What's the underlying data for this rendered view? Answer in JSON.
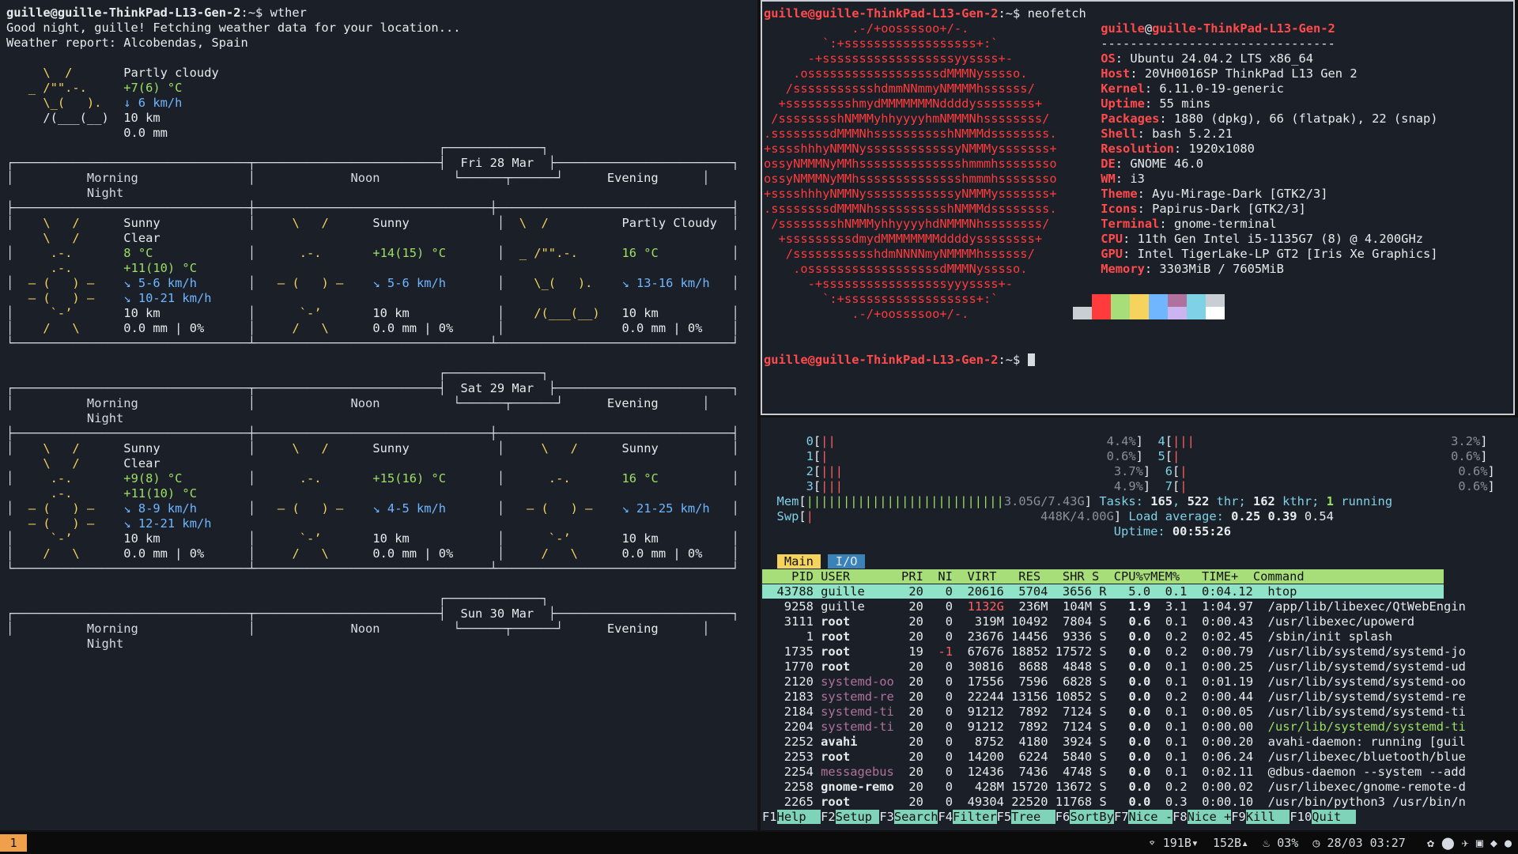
{
  "weather": {
    "prompt_user": "guille@guille-ThinkPad-L13-Gen-2",
    "prompt_tail": ":~$",
    "command": "wther",
    "greeting": "Good night, guille! Fetching weather data for your location...",
    "report": "Weather report: Alcobendas, Spain",
    "current": {
      "condition": "Partly cloudy",
      "temp": "+7(6) °C",
      "wind": "6 km/h",
      "visibility": "10 km",
      "precip": "0.0 mm"
    },
    "days": [
      {
        "date": "Fri 28 Mar",
        "morning": {
          "condition": "Sunny",
          "temp": "8 °C",
          "wind": "5-6 km/h",
          "visibility": "10 km",
          "precip": "0.0 mm | 0%"
        },
        "noon": {
          "condition": "Sunny",
          "temp": "+14(15) °C",
          "wind": "5-6 km/h",
          "visibility": "10 km",
          "precip": "0.0 mm | 0%"
        },
        "evening": {
          "condition": "Partly Cloudy",
          "temp": "16 °C",
          "wind": "13-16 km/h",
          "visibility": "10 km",
          "precip": "0.0 mm | 0%"
        },
        "night": {
          "condition": "Clear",
          "temp": "+11(10) °C",
          "wind": "10-21 km/h",
          "visibility": "10 km",
          "precip": "0.0 mm | 0%"
        }
      },
      {
        "date": "Sat 29 Mar",
        "morning": {
          "condition": "Sunny",
          "temp": "+9(8) °C",
          "wind": "8-9 km/h",
          "visibility": "10 km",
          "precip": "0.0 mm | 0%"
        },
        "noon": {
          "condition": "Sunny",
          "temp": "+15(16) °C",
          "wind": "4-5 km/h",
          "visibility": "10 km",
          "precip": "0.0 mm | 0%"
        },
        "evening": {
          "condition": "Sunny",
          "temp": "16 °C",
          "wind": "21-25 km/h",
          "visibility": "10 km",
          "precip": "0.0 mm | 0%"
        },
        "night": {
          "condition": "Clear",
          "temp": "+11(10) °C",
          "wind": "12-21 km/h",
          "visibility": "10 km",
          "precip": "0.0 mm | 0%"
        }
      },
      {
        "date": "Sun 30 Mar"
      }
    ],
    "labels": {
      "morning": "Morning",
      "noon": "Noon",
      "evening": "Evening",
      "night": "Night"
    }
  },
  "neofetch": {
    "prompt_user": "guille@guille-ThinkPad-L13-Gen-2",
    "prompt_tail": ":~$",
    "command": "neofetch",
    "user": "guille",
    "host": "guille-ThinkPad-L13-Gen-2",
    "separator": "--------------------------------",
    "info": [
      {
        "key": "OS",
        "value": "Ubuntu 24.04.2 LTS x86_64"
      },
      {
        "key": "Host",
        "value": "20VH0016SP ThinkPad L13 Gen 2"
      },
      {
        "key": "Kernel",
        "value": "6.11.0-19-generic"
      },
      {
        "key": "Uptime",
        "value": "55 mins"
      },
      {
        "key": "Packages",
        "value": "1880 (dpkg), 66 (flatpak), 22 (snap)"
      },
      {
        "key": "Shell",
        "value": "bash 5.2.21"
      },
      {
        "key": "Resolution",
        "value": "1920x1080"
      },
      {
        "key": "DE",
        "value": "GNOME 46.0"
      },
      {
        "key": "WM",
        "value": "i3"
      },
      {
        "key": "Theme",
        "value": "Ayu-Mirage-Dark [GTK2/3]"
      },
      {
        "key": "Icons",
        "value": "Papirus-Dark [GTK2/3]"
      },
      {
        "key": "Terminal",
        "value": "gnome-terminal"
      },
      {
        "key": "CPU",
        "value": "11th Gen Intel i5-1135G7 (8) @ 4.200GHz"
      },
      {
        "key": "GPU",
        "value": "Intel TigerLake-LP GT2 [Iris Xe Graphics]"
      },
      {
        "key": "Memory",
        "value": "3303MiB / 7605MiB"
      }
    ],
    "palette_top": [
      "#1b1f28",
      "#ff3b3b",
      "#a8de7a",
      "#f5d35c",
      "#6fb6ff",
      "#b0729c",
      "#7fd1e6",
      "#c9cdd4"
    ],
    "palette_bottom": [
      "#c9cdd4",
      "#ff3b3b",
      "#a8de7a",
      "#f5d35c",
      "#6fb6ff",
      "#cbb4f0",
      "#7fd1e6",
      "#ffffff"
    ]
  },
  "htop": {
    "cpus": [
      {
        "id": "0",
        "pct": "4.4%"
      },
      {
        "id": "1",
        "pct": "0.6%"
      },
      {
        "id": "2",
        "pct": "3.7%"
      },
      {
        "id": "3",
        "pct": "4.9%"
      },
      {
        "id": "4",
        "pct": "3.2%"
      },
      {
        "id": "5",
        "pct": "0.6%"
      },
      {
        "id": "6",
        "pct": "0.6%"
      },
      {
        "id": "7",
        "pct": "0.6%"
      }
    ],
    "mem": "3.05G/7.43G",
    "swp": "448K/4.00G",
    "tasks": "165",
    "thr": "522",
    "kthr": "162",
    "running": "1",
    "load": [
      "0.25",
      "0.39",
      "0.54"
    ],
    "uptime": "00:55:26",
    "tabs": [
      "Main",
      "I/O"
    ],
    "columns": "    PID USER       PRI  NI  VIRT   RES   SHR S  CPU%▽MEM%   TIME+  Command",
    "rows": [
      {
        "pid": "43788",
        "user": "guille",
        "pri": "20",
        "ni": "0",
        "virt": "20616",
        "res": "5704",
        "shr": "3656",
        "s": "R",
        "cpu": "5.0",
        "mem": "0.1",
        "time": "0:04.12",
        "cmd": "htop"
      },
      {
        "pid": "9258",
        "user": "guille",
        "pri": "20",
        "ni": "0",
        "virt": "1132G",
        "res": "236M",
        "shr": "104M",
        "s": "S",
        "cpu": "1.9",
        "mem": "3.1",
        "time": "1:04.97",
        "cmd": "/app/lib/libexec/QtWebEngin"
      },
      {
        "pid": "3111",
        "user": "root",
        "pri": "20",
        "ni": "0",
        "virt": "319M",
        "res": "10492",
        "shr": "7804",
        "s": "S",
        "cpu": "0.6",
        "mem": "0.1",
        "time": "0:00.43",
        "cmd": "/usr/libexec/upowerd"
      },
      {
        "pid": "1",
        "user": "root",
        "pri": "20",
        "ni": "0",
        "virt": "23676",
        "res": "14456",
        "shr": "9336",
        "s": "S",
        "cpu": "0.0",
        "mem": "0.2",
        "time": "0:02.45",
        "cmd": "/sbin/init splash"
      },
      {
        "pid": "1735",
        "user": "root",
        "pri": "19",
        "ni": "-1",
        "virt": "67676",
        "res": "18852",
        "shr": "17572",
        "s": "S",
        "cpu": "0.0",
        "mem": "0.2",
        "time": "0:00.79",
        "cmd": "/usr/lib/systemd/systemd-jo"
      },
      {
        "pid": "1770",
        "user": "root",
        "pri": "20",
        "ni": "0",
        "virt": "30816",
        "res": "8688",
        "shr": "4848",
        "s": "S",
        "cpu": "0.0",
        "mem": "0.1",
        "time": "0:00.25",
        "cmd": "/usr/lib/systemd/systemd-ud"
      },
      {
        "pid": "2120",
        "user": "systemd-oo",
        "pri": "20",
        "ni": "0",
        "virt": "17556",
        "res": "7596",
        "shr": "6828",
        "s": "S",
        "cpu": "0.0",
        "mem": "0.1",
        "time": "0:01.19",
        "cmd": "/usr/lib/systemd/systemd-oo"
      },
      {
        "pid": "2183",
        "user": "systemd-re",
        "pri": "20",
        "ni": "0",
        "virt": "22244",
        "res": "13156",
        "shr": "10852",
        "s": "S",
        "cpu": "0.0",
        "mem": "0.2",
        "time": "0:00.44",
        "cmd": "/usr/lib/systemd/systemd-re"
      },
      {
        "pid": "2184",
        "user": "systemd-ti",
        "pri": "20",
        "ni": "0",
        "virt": "91212",
        "res": "7892",
        "shr": "7124",
        "s": "S",
        "cpu": "0.0",
        "mem": "0.1",
        "time": "0:00.05",
        "cmd": "/usr/lib/systemd/systemd-ti"
      },
      {
        "pid": "2204",
        "user": "systemd-ti",
        "pri": "20",
        "ni": "0",
        "virt": "91212",
        "res": "7892",
        "shr": "7124",
        "s": "S",
        "cpu": "0.0",
        "mem": "0.1",
        "time": "0:00.00",
        "cmd": "/usr/lib/systemd/systemd-ti"
      },
      {
        "pid": "2252",
        "user": "avahi",
        "pri": "20",
        "ni": "0",
        "virt": "8752",
        "res": "4180",
        "shr": "3924",
        "s": "S",
        "cpu": "0.0",
        "mem": "0.1",
        "time": "0:00.20",
        "cmd": "avahi-daemon: running [guil"
      },
      {
        "pid": "2253",
        "user": "root",
        "pri": "20",
        "ni": "0",
        "virt": "14200",
        "res": "6224",
        "shr": "5840",
        "s": "S",
        "cpu": "0.0",
        "mem": "0.1",
        "time": "0:06.24",
        "cmd": "/usr/libexec/bluetooth/blue"
      },
      {
        "pid": "2254",
        "user": "messagebus",
        "pri": "20",
        "ni": "0",
        "virt": "12436",
        "res": "7436",
        "shr": "4748",
        "s": "S",
        "cpu": "0.0",
        "mem": "0.1",
        "time": "0:02.11",
        "cmd": "@dbus-daemon --system --add"
      },
      {
        "pid": "2258",
        "user": "gnome-remo",
        "pri": "20",
        "ni": "0",
        "virt": "428M",
        "res": "15720",
        "shr": "13672",
        "s": "S",
        "cpu": "0.0",
        "mem": "0.2",
        "time": "0:00.02",
        "cmd": "/usr/libexec/gnome-remote-d"
      },
      {
        "pid": "2265",
        "user": "root",
        "pri": "20",
        "ni": "0",
        "virt": "49304",
        "res": "22520",
        "shr": "11768",
        "s": "S",
        "cpu": "0.0",
        "mem": "0.3",
        "time": "0:00.10",
        "cmd": "/usr/bin/python3 /usr/bin/n"
      }
    ],
    "fkeys": [
      {
        "k": "F1",
        "l": "Help  "
      },
      {
        "k": "F2",
        "l": "Setup "
      },
      {
        "k": "F3",
        "l": "Search"
      },
      {
        "k": "F4",
        "l": "Filter"
      },
      {
        "k": "F5",
        "l": "Tree  "
      },
      {
        "k": "F6",
        "l": "SortBy"
      },
      {
        "k": "F7",
        "l": "Nice -"
      },
      {
        "k": "F8",
        "l": "Nice +"
      },
      {
        "k": "F9",
        "l": "Kill  "
      },
      {
        "k": "F10",
        "l": "Quit  "
      }
    ]
  },
  "statusbar": {
    "workspace": "1",
    "net_down": "191B",
    "net_up": "152B",
    "cpu": "03%",
    "datetime": "28/03 03:27"
  }
}
